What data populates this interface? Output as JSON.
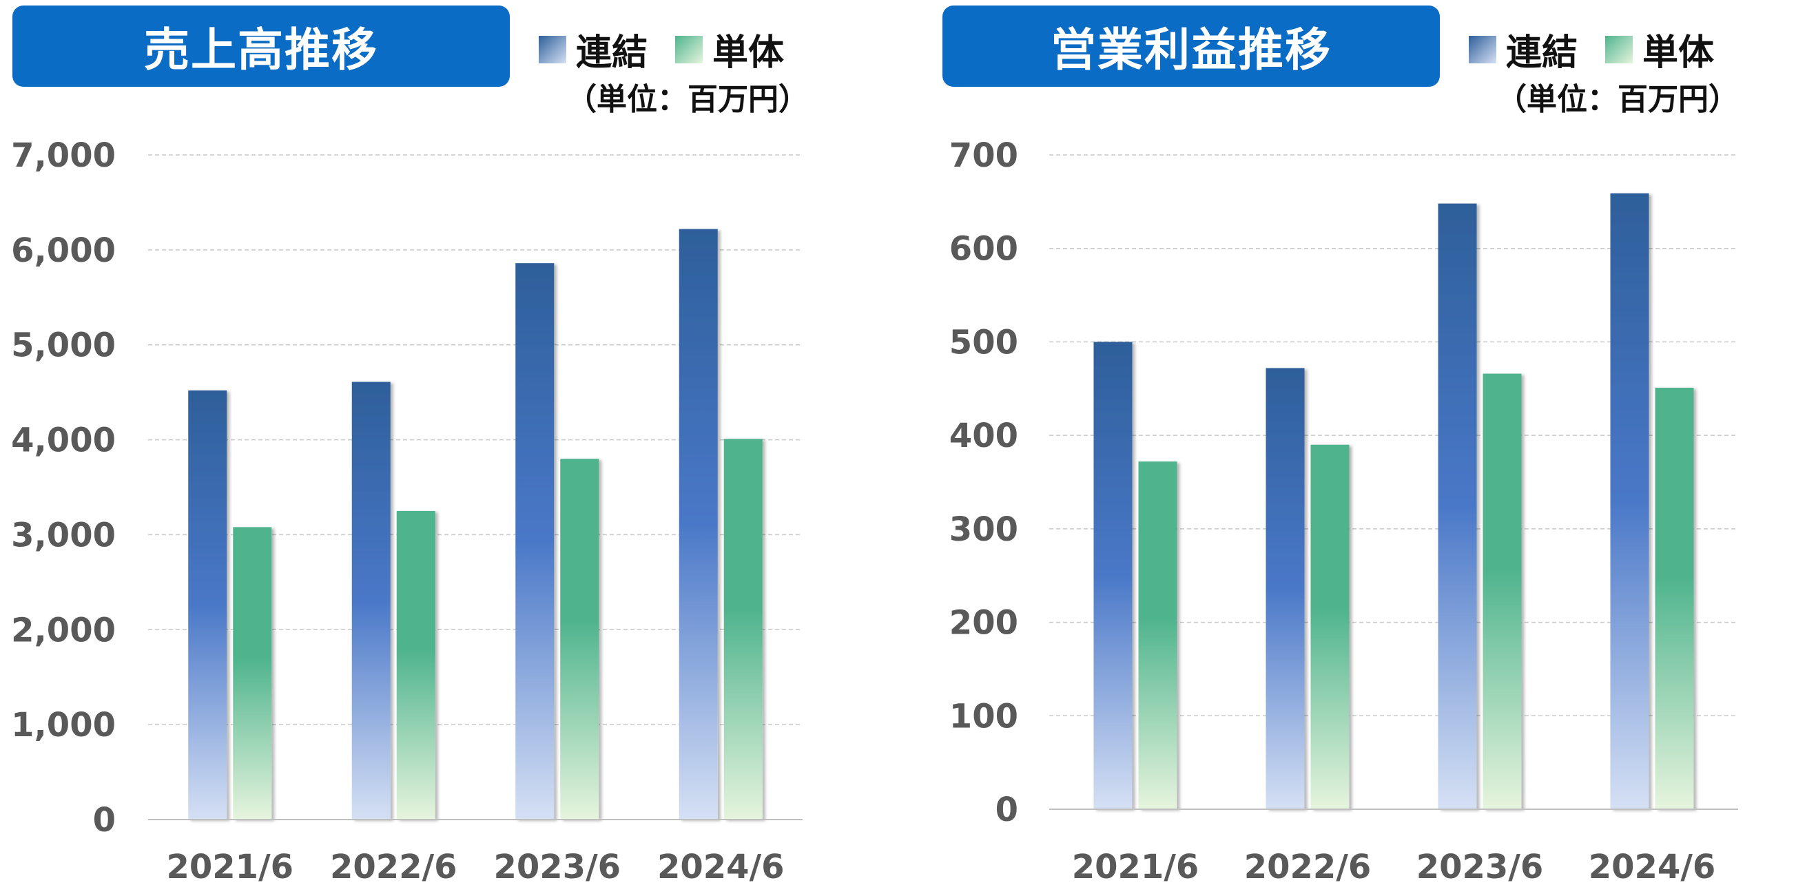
{
  "colors": {
    "title_bg": "#0a6cc4",
    "consolidated_top": "#2e5f9a",
    "consolidated_mid": "#4a78c8",
    "consolidated_bottom": "#d5e0f4",
    "standalone_top": "#4fb48e",
    "standalone_bottom": "#e6f4dd"
  },
  "legend": {
    "consolidated": "連結",
    "standalone": "単体"
  },
  "unit_label": "（単位：百万円）",
  "chart_data": [
    {
      "type": "bar",
      "title": "売上高推移",
      "categories": [
        "2021/6",
        "2022/6",
        "2023/6",
        "2024/6"
      ],
      "series": [
        {
          "name": "連結",
          "values": [
            4520,
            4610,
            5860,
            6220
          ]
        },
        {
          "name": "単体",
          "values": [
            3080,
            3250,
            3800,
            4010
          ]
        }
      ],
      "ylim": [
        0,
        7000
      ],
      "yticks": [
        "0",
        "1,000",
        "2,000",
        "3,000",
        "4,000",
        "5,000",
        "6,000",
        "7,000"
      ],
      "grid": true,
      "legend_position": "top-right"
    },
    {
      "type": "bar",
      "title": "営業利益推移",
      "categories": [
        "2021/6",
        "2022/6",
        "2023/6",
        "2024/6"
      ],
      "series": [
        {
          "name": "連結",
          "values": [
            500,
            472,
            648,
            659
          ]
        },
        {
          "name": "単体",
          "values": [
            372,
            390,
            466,
            451
          ]
        }
      ],
      "ylim": [
        0,
        700
      ],
      "yticks": [
        "0",
        "100",
        "200",
        "300",
        "400",
        "500",
        "600",
        "700"
      ],
      "grid": true,
      "legend_position": "top-right"
    }
  ]
}
